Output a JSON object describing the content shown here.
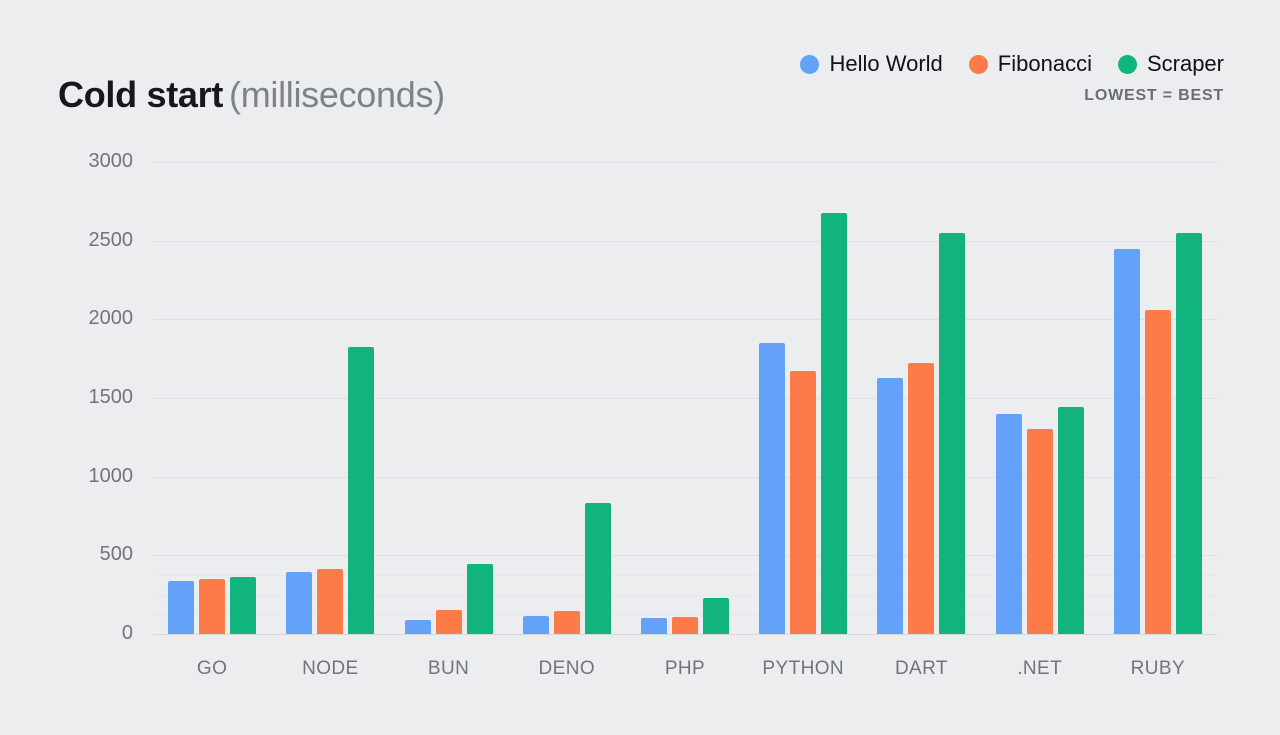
{
  "header": {
    "title": "Cold start",
    "subtitle": "(milliseconds)",
    "note": "LOWEST = BEST"
  },
  "colors": {
    "background": "#ECEDEF",
    "grid_major": "#DEE0E3",
    "grid_baseline": "#D6D8DB",
    "grid_minor": "#E5E7EA",
    "axis_text": "#70757C",
    "title": "#16181D",
    "title_muted": "#7C828B",
    "legend_text": "#0F1216",
    "note_text": "#696E76"
  },
  "chart_data": {
    "type": "bar",
    "title": "Cold start",
    "subtitle": "(milliseconds)",
    "annotation": "LOWEST = BEST",
    "categories": [
      "GO",
      "NODE",
      "BUN",
      "DENO",
      "PHP",
      "PYTHON",
      "DART",
      ".NET",
      "RUBY"
    ],
    "series": [
      {
        "name": "Hello World",
        "color": "#64A2FA",
        "values": [
          335,
          395,
          90,
          115,
          100,
          1850,
          1630,
          1400,
          2450
        ]
      },
      {
        "name": "Fibonacci",
        "color": "#FC7B48",
        "values": [
          350,
          415,
          155,
          145,
          110,
          1670,
          1720,
          1300,
          2060
        ]
      },
      {
        "name": "Scraper",
        "color": "#12B47E",
        "values": [
          365,
          1825,
          445,
          830,
          230,
          2675,
          2550,
          1445,
          2550
        ]
      }
    ],
    "xlabel": "",
    "ylabel": "",
    "ylim": [
      0,
      3000
    ],
    "yticks": [
      0,
      500,
      1000,
      1500,
      2000,
      2500,
      3000
    ],
    "minor_yticks": [
      125,
      250,
      375
    ],
    "grid": "horizontal",
    "legend_position": "top-right"
  }
}
